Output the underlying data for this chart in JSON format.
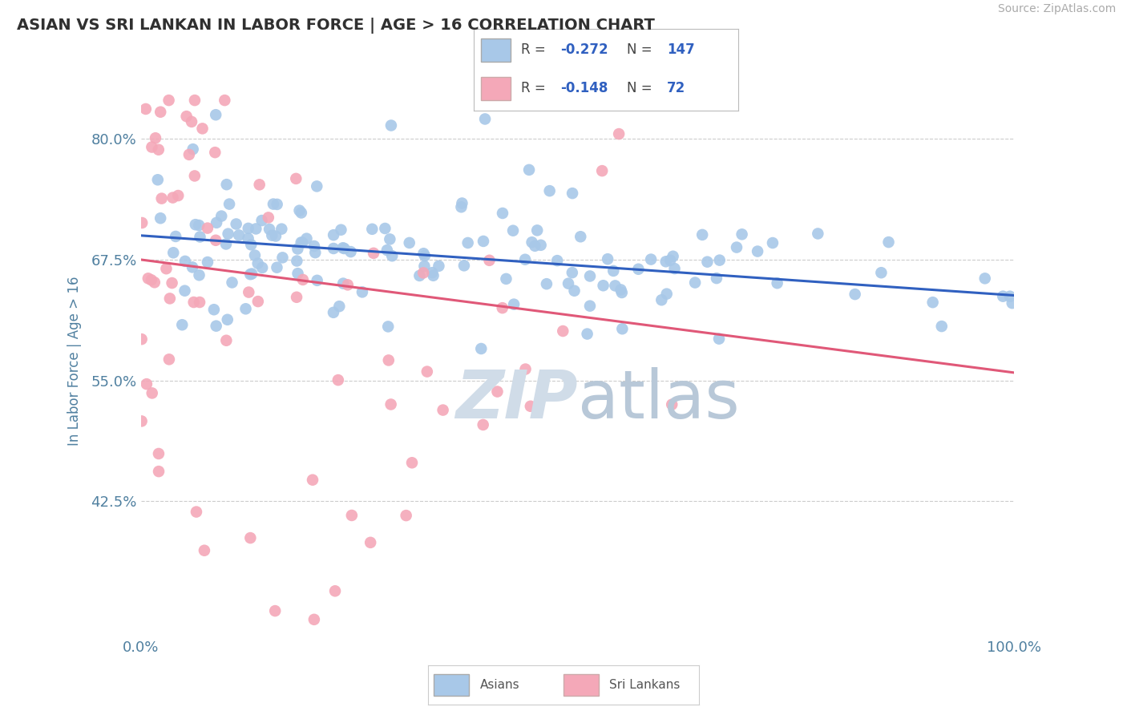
{
  "title": "ASIAN VS SRI LANKAN IN LABOR FORCE | AGE > 16 CORRELATION CHART",
  "source_text": "Source: ZipAtlas.com",
  "ylabel": "In Labor Force | Age > 16",
  "xlim": [
    0,
    1.0
  ],
  "ylim": [
    0.285,
    0.855
  ],
  "yticks": [
    0.425,
    0.55,
    0.675,
    0.8
  ],
  "ytick_labels": [
    "42.5%",
    "55.0%",
    "67.5%",
    "80.0%"
  ],
  "xtick_labels": [
    "0.0%",
    "100.0%"
  ],
  "xticks": [
    0.0,
    1.0
  ],
  "blue_R": -0.272,
  "blue_N": 147,
  "pink_R": -0.148,
  "pink_N": 72,
  "blue_line_start": 0.7,
  "blue_line_end": 0.638,
  "pink_line_start": 0.675,
  "pink_line_end": 0.558,
  "blue_scatter_color": "#A8C8E8",
  "pink_scatter_color": "#F4A8B8",
  "trend_blue": "#3060C0",
  "trend_pink": "#E05878",
  "legend_R_color": "#3060C0",
  "legend_N_color": "#3060C0",
  "title_color": "#303030",
  "axis_label_color": "#5080A0",
  "tick_color": "#5080A0",
  "watermark_color": "#D0DCE8",
  "grid_color": "#CCCCCC",
  "background_color": "#FFFFFF"
}
